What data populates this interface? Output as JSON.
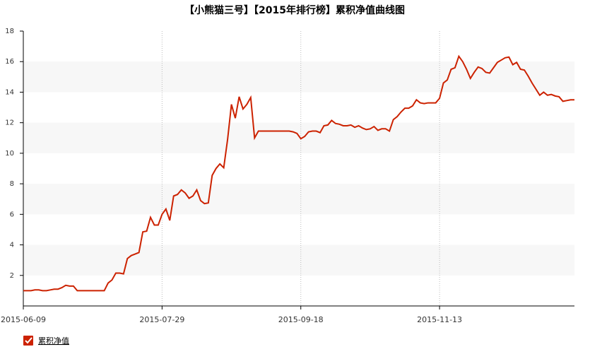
{
  "chart_data": {
    "type": "line",
    "title": "【小熊猫三号】【2015年排行榜】累积净值曲线图",
    "categories": [
      "2015-06-09",
      null,
      null,
      null,
      null,
      null,
      null,
      null,
      null,
      null,
      null,
      null,
      null,
      null,
      null,
      null,
      null,
      null,
      null,
      null,
      null,
      null,
      null,
      null,
      null,
      null,
      null,
      null,
      null,
      null,
      null,
      null,
      null,
      null,
      null,
      null,
      "2015-07-29",
      null,
      null,
      null,
      null,
      null,
      null,
      null,
      null,
      null,
      null,
      null,
      null,
      null,
      null,
      null,
      null,
      null,
      null,
      null,
      null,
      null,
      null,
      null,
      null,
      null,
      null,
      null,
      null,
      null,
      null,
      null,
      null,
      null,
      null,
      null,
      "2015-09-18",
      null,
      null,
      null,
      null,
      null,
      null,
      null,
      null,
      null,
      null,
      null,
      null,
      null,
      null,
      null,
      null,
      null,
      null,
      null,
      null,
      null,
      null,
      null,
      null,
      null,
      null,
      null,
      null,
      null,
      null,
      null,
      null,
      null,
      null,
      null,
      "2015-11-13",
      null,
      null,
      null,
      null,
      null,
      null,
      null,
      null,
      null,
      null,
      null,
      null,
      null,
      null,
      null,
      null,
      null,
      null,
      null,
      null,
      null,
      null,
      null,
      null,
      null,
      null,
      null,
      null,
      null,
      null,
      null,
      null,
      null,
      null,
      null
    ],
    "series": [
      {
        "name": "累积净值",
        "color": "#cc2200",
        "values": [
          1.0,
          1.0,
          1.0,
          1.05,
          1.05,
          1.0,
          1.0,
          1.05,
          1.1,
          1.1,
          1.2,
          1.35,
          1.3,
          1.3,
          1.0,
          1.0,
          1.0,
          1.0,
          1.0,
          1.0,
          1.0,
          1.0,
          1.5,
          1.7,
          2.15,
          2.15,
          2.1,
          3.1,
          3.3,
          3.4,
          3.5,
          4.85,
          4.9,
          5.8,
          5.3,
          5.3,
          6.0,
          6.35,
          5.6,
          7.2,
          7.3,
          7.6,
          7.4,
          7.05,
          7.2,
          7.6,
          6.9,
          6.7,
          6.75,
          8.55,
          9.0,
          9.3,
          9.05,
          10.9,
          13.2,
          12.3,
          13.7,
          12.9,
          13.2,
          13.65,
          11.0,
          11.45,
          11.45,
          11.45,
          11.45,
          11.45,
          11.45,
          11.45,
          11.45,
          11.45,
          11.4,
          11.3,
          10.95,
          11.1,
          11.4,
          11.45,
          11.45,
          11.35,
          11.8,
          11.85,
          12.15,
          11.95,
          11.9,
          11.8,
          11.8,
          11.85,
          11.7,
          11.8,
          11.65,
          11.55,
          11.6,
          11.75,
          11.5,
          11.6,
          11.6,
          11.45,
          12.2,
          12.4,
          12.7,
          12.95,
          12.95,
          13.1,
          13.5,
          13.3,
          13.25,
          13.3,
          13.3,
          13.3,
          13.6,
          14.6,
          14.8,
          15.5,
          15.6,
          16.35,
          16.0,
          15.5,
          14.9,
          15.3,
          15.65,
          15.55,
          15.3,
          15.25,
          15.6,
          15.95,
          16.1,
          16.25,
          16.3,
          15.8,
          15.95,
          15.5,
          15.45,
          15.05,
          14.6,
          14.2,
          13.8,
          14.0,
          13.8,
          13.85,
          13.75,
          13.7,
          13.4,
          13.45,
          13.5,
          13.5
        ]
      }
    ],
    "ylim": [
      0,
      18
    ],
    "yticks": [
      2,
      4,
      6,
      8,
      10,
      12,
      14,
      16,
      18
    ],
    "grid": true
  }
}
